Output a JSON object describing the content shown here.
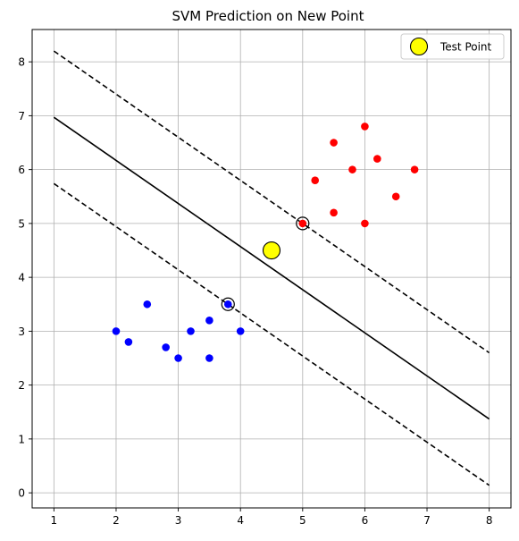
{
  "chart_data": {
    "type": "scatter",
    "title": "SVM Prediction on New Point",
    "xlabel": "",
    "ylabel": "",
    "xlim": [
      0.65,
      8.35
    ],
    "ylim": [
      -0.28,
      8.6
    ],
    "xticks": [
      1,
      2,
      3,
      4,
      5,
      6,
      7,
      8
    ],
    "yticks": [
      0,
      1,
      2,
      3,
      4,
      5,
      6,
      7,
      8
    ],
    "grid": true,
    "legend_position": "top-right",
    "legend": [
      {
        "label": "Test Point",
        "color": "#ffff00"
      }
    ],
    "series": [
      {
        "color": "#0000ff",
        "points": [
          [
            2.0,
            3.0
          ],
          [
            2.2,
            2.8
          ],
          [
            2.5,
            3.5
          ],
          [
            2.8,
            2.7
          ],
          [
            3.0,
            2.5
          ],
          [
            3.2,
            3.0
          ],
          [
            3.5,
            3.2
          ],
          [
            3.5,
            2.5
          ],
          [
            3.8,
            3.5
          ],
          [
            4.0,
            3.0
          ]
        ]
      },
      {
        "color": "#ff0000",
        "points": [
          [
            5.0,
            5.0
          ],
          [
            5.2,
            5.8
          ],
          [
            5.5,
            6.5
          ],
          [
            5.5,
            5.2
          ],
          [
            5.8,
            6.0
          ],
          [
            6.0,
            6.8
          ],
          [
            6.0,
            5.0
          ],
          [
            6.2,
            6.2
          ],
          [
            6.5,
            5.5
          ],
          [
            6.8,
            6.0
          ]
        ]
      }
    ],
    "support_vectors": [
      [
        3.8,
        3.5
      ],
      [
        5.0,
        5.0
      ]
    ],
    "decision_boundary": {
      "style": "solid",
      "color": "#000000",
      "points": [
        [
          1,
          6.97
        ],
        [
          8,
          1.37
        ]
      ]
    },
    "margins": [
      {
        "style": "dashed",
        "color": "#000000",
        "points": [
          [
            1,
            8.2
          ],
          [
            8,
            2.6
          ]
        ]
      },
      {
        "style": "dashed",
        "color": "#000000",
        "points": [
          [
            1,
            5.74
          ],
          [
            8,
            0.14
          ]
        ]
      }
    ],
    "test_point": {
      "label": "Test Point",
      "color": "#ffff00",
      "point": [
        4.5,
        4.5
      ]
    }
  }
}
